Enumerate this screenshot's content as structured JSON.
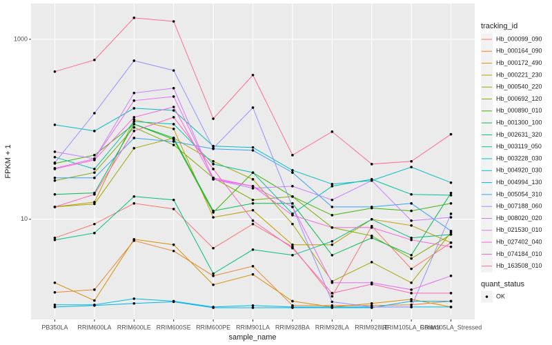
{
  "chart_data": {
    "type": "line",
    "log_y": true,
    "grid": true,
    "points": true,
    "point_color": "#000000",
    "panel_color": "#EBEBEB",
    "legend_position": "right",
    "x_label": "sample_name",
    "y_label": "FPKM + 1",
    "legend_title": "tracking_id",
    "categories": [
      "PB350LA",
      "RRIM600LA",
      "RRIM600LE",
      "RRIM600SE",
      "RRIM600PE",
      "RRIM901LA",
      "RRIM928BA",
      "RRIM928LA",
      "RRIM928LE",
      "RRIM105LA_Control",
      "RRIM105LA_Stressed"
    ],
    "ylim": [
      0.77,
      2500
    ],
    "yticks": [
      10,
      1000
    ],
    "series": [
      {
        "name": "Hb_000099_090",
        "color": "#F8766D",
        "values": [
          6.21,
          8.84,
          15.0,
          13.0,
          4.77,
          8.84,
          4.94,
          1.39,
          8.38,
          2.81,
          5.49
        ]
      },
      {
        "name": "Hb_000164_090",
        "color": "#EA8331",
        "values": [
          1.54,
          1.65,
          5.79,
          4.44,
          2.35,
          3.01,
          1.1,
          1.1,
          1.1,
          1.12,
          1.23
        ]
      },
      {
        "name": "Hb_000172_490",
        "color": "#D89000",
        "values": [
          1.97,
          1.25,
          5.99,
          5.21,
          1.87,
          2.44,
          1.23,
          1.06,
          1.16,
          1.29,
          1.06
        ]
      },
      {
        "name": "Hb_000221_230",
        "color": "#C09B00",
        "values": [
          13.7,
          15.5,
          128,
          101,
          10.5,
          12.6,
          5.21,
          5.21,
          10,
          8.53,
          5.49
        ]
      },
      {
        "name": "Hb_000540_220",
        "color": "#A3A500",
        "values": [
          13.7,
          14.8,
          61.6,
          80,
          44,
          27.8,
          8.84,
          2.04,
          3.34,
          1.97,
          7.15
        ]
      },
      {
        "name": "Hb_000692_120",
        "color": "#7CAE00",
        "values": [
          26.9,
          33,
          105,
          67,
          28.8,
          16.4,
          17.9,
          8.09,
          6.54,
          3.66,
          6.78
        ]
      },
      {
        "name": "Hb_000890_010",
        "color": "#39B600",
        "values": [
          41.7,
          51.6,
          114,
          77,
          11.9,
          33,
          17.9,
          11.1,
          13.3,
          12.4,
          15.0
        ]
      },
      {
        "name": "Hb_001300_100",
        "color": "#00BB4E",
        "values": [
          18.9,
          19.6,
          114,
          80,
          12.4,
          15.0,
          15.0,
          3.99,
          6.21,
          3.99,
          19.6
        ]
      },
      {
        "name": "Hb_002631_320",
        "color": "#00BF7D",
        "values": [
          5.89,
          7.03,
          17.9,
          16.4,
          2.49,
          4.6,
          3.99,
          5.69,
          10,
          6.21,
          6.78
        ]
      },
      {
        "name": "Hb_003119_050",
        "color": "#00C1A3",
        "values": [
          49,
          36.2,
          122,
          114,
          41,
          33,
          11.5,
          23.3,
          27.8,
          18.9,
          18.5
        ]
      },
      {
        "name": "Hb_003228_030",
        "color": "#00BFC4",
        "values": [
          112,
          95.7,
          171,
          162,
          65,
          62.8,
          35,
          24.6,
          26.9,
          38,
          25.5
        ]
      },
      {
        "name": "Hb_004920_030",
        "color": "#00BAE0",
        "values": [
          1.12,
          1.12,
          1.31,
          1.23,
          1.06,
          1.1,
          1.06,
          1.06,
          1.06,
          1.06,
          1.06
        ]
      },
      {
        "name": "Hb_004994_130",
        "color": "#00B0F6",
        "values": [
          1.06,
          1.1,
          1.16,
          1.21,
          1.04,
          1.04,
          1.04,
          1.04,
          1.04,
          1.23,
          1.23
        ]
      },
      {
        "name": "Hb_005054_310",
        "color": "#35A2FF",
        "values": [
          28.8,
          28.8,
          80,
          73,
          60.5,
          58.3,
          33,
          13.7,
          13.7,
          15.0,
          7.41
        ]
      },
      {
        "name": "Hb_007188_060",
        "color": "#9590FF",
        "values": [
          42.5,
          151,
          578,
          450,
          61.6,
          174,
          13.7,
          1.21,
          1.06,
          1.06,
          11.5
        ]
      },
      {
        "name": "Hb_008020_020",
        "color": "#C77CFF",
        "values": [
          56.3,
          47,
          253,
          286,
          27.8,
          22.1,
          23.3,
          16.4,
          26.9,
          9.65,
          10.5
        ]
      },
      {
        "name": "Hb_021530_010",
        "color": "#E76BF3",
        "values": [
          36.9,
          47,
          208,
          231,
          28.8,
          23.3,
          13.7,
          1.97,
          1.97,
          1.65,
          2.35
        ]
      },
      {
        "name": "Hb_027402_040",
        "color": "#FA62DB",
        "values": [
          36.2,
          45.6,
          136,
          177,
          27.8,
          23.3,
          11.1,
          8.09,
          8.09,
          5.89,
          4.94
        ]
      },
      {
        "name": "Hb_074184_010",
        "color": "#FF62BC",
        "values": [
          13.7,
          18.9,
          95.7,
          136,
          36.2,
          9.65,
          4.77,
          1.51,
          1.9,
          1.51,
          1.51
        ]
      },
      {
        "name": "Hb_163508_010",
        "color": "#FF6C91",
        "values": [
          437,
          589,
          1730,
          1580,
          131,
          400,
          51.6,
          94,
          41,
          44,
          88
        ]
      }
    ],
    "shape_legend": {
      "title": "quant_status",
      "levels": [
        "OK"
      ]
    }
  }
}
